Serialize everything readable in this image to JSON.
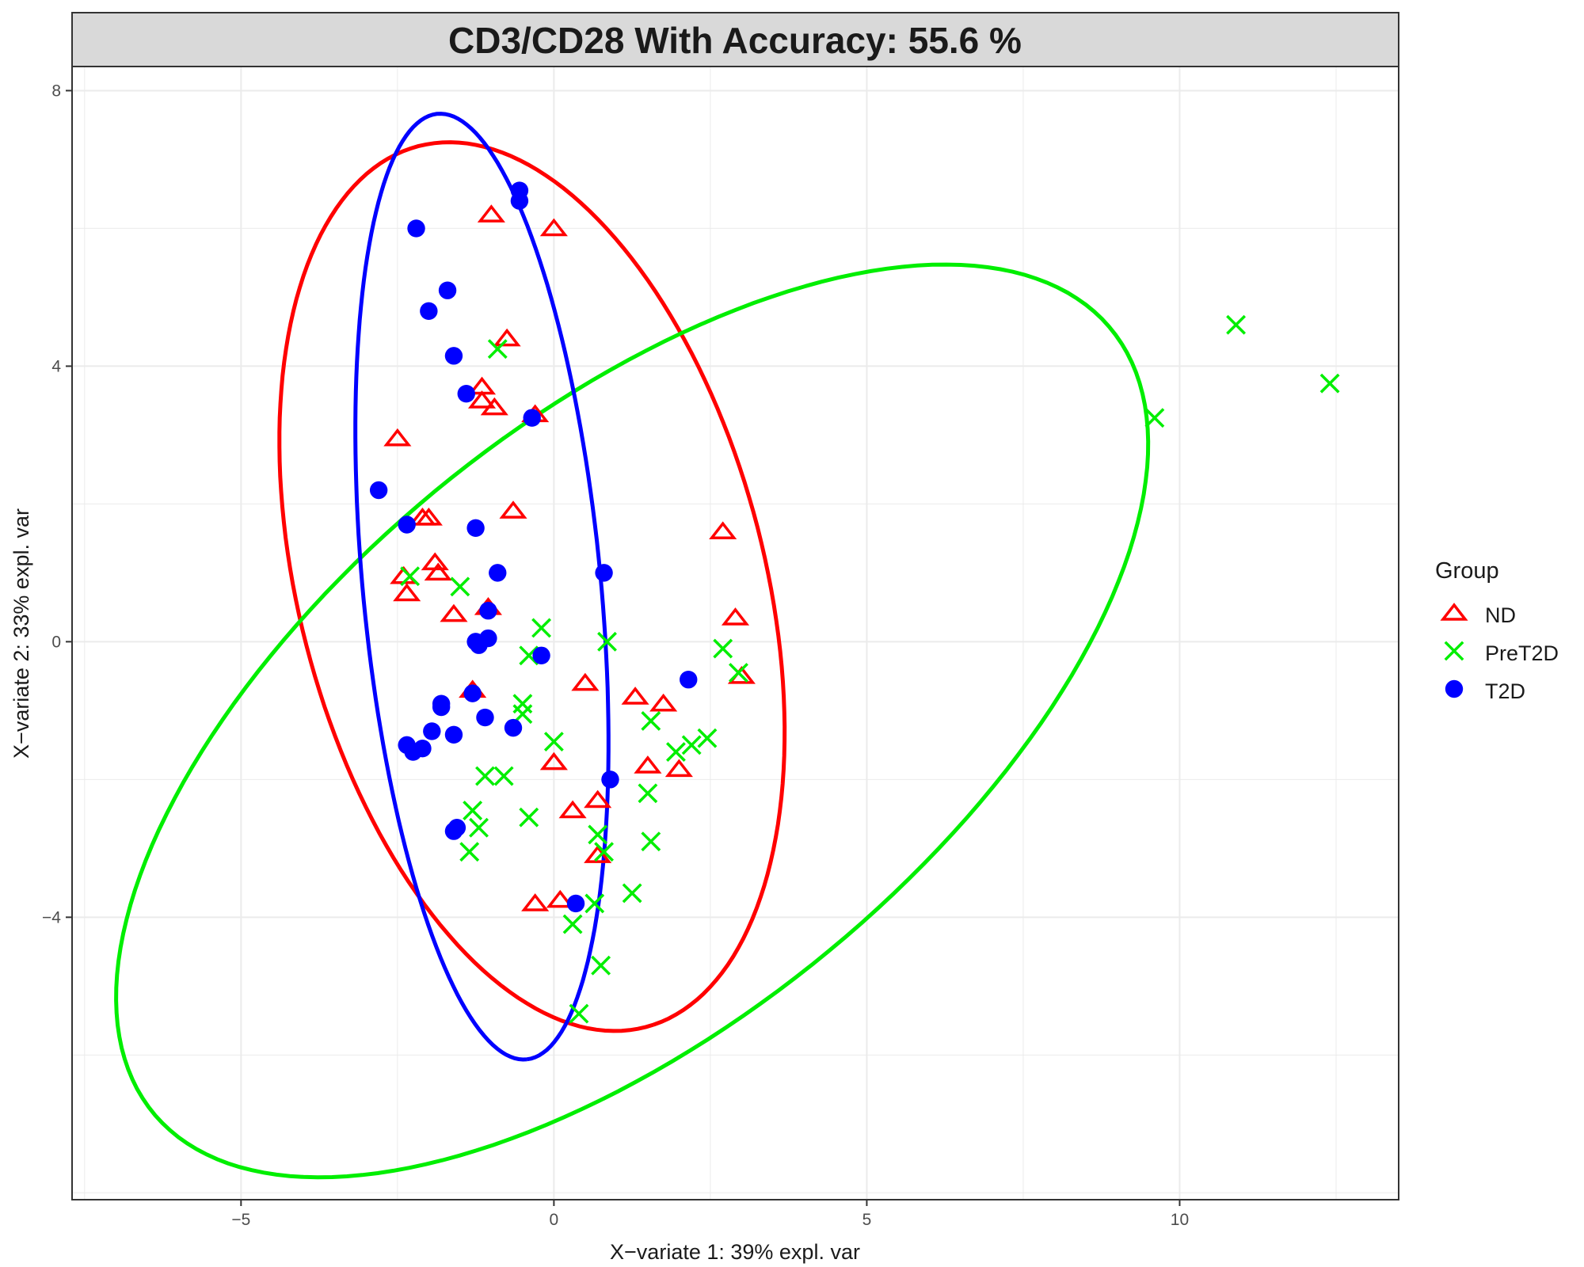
{
  "chart_data": {
    "type": "scatter",
    "title": "CD3/CD28 With Accuracy: 55.6 %",
    "xlabel": "X−variate 1: 39% expl. var",
    "ylabel": "X−variate 2: 33% expl. var",
    "xlim": [
      -7.7,
      13.5
    ],
    "ylim": [
      -8.1,
      8.35
    ],
    "x_ticks": [
      -5,
      0,
      5,
      10
    ],
    "x_tick_labels": [
      "−5",
      "0",
      "5",
      "10"
    ],
    "y_ticks": [
      -4,
      0,
      4,
      8
    ],
    "y_tick_labels": [
      "−4",
      "0",
      "4",
      "8"
    ],
    "grid": true,
    "legend": {
      "title": "Group",
      "position": "right",
      "entries": [
        {
          "label": "ND",
          "marker": "triangle",
          "color": "#ff0000"
        },
        {
          "label": "PreT2D",
          "marker": "x",
          "color": "#00ee00"
        },
        {
          "label": "T2D",
          "marker": "circle",
          "color": "#0000ff"
        }
      ]
    },
    "series": [
      {
        "name": "ND",
        "marker": "triangle",
        "color": "#ff0000",
        "points": [
          [
            -1.0,
            6.2
          ],
          [
            0.0,
            6.0
          ],
          [
            -0.75,
            4.4
          ],
          [
            -1.15,
            3.7
          ],
          [
            -1.15,
            3.5
          ],
          [
            -0.95,
            3.4
          ],
          [
            -0.3,
            3.3
          ],
          [
            -2.5,
            2.95
          ],
          [
            -0.65,
            1.9
          ],
          [
            -2.1,
            1.8
          ],
          [
            -2.0,
            1.8
          ],
          [
            -1.9,
            1.15
          ],
          [
            -1.85,
            1.0
          ],
          [
            -2.4,
            0.95
          ],
          [
            -2.35,
            0.7
          ],
          [
            -1.6,
            0.4
          ],
          [
            -1.05,
            0.5
          ],
          [
            2.7,
            1.6
          ],
          [
            2.9,
            0.35
          ],
          [
            3.0,
            -0.5
          ],
          [
            0.5,
            -0.6
          ],
          [
            1.3,
            -0.8
          ],
          [
            1.75,
            -0.9
          ],
          [
            -1.3,
            -0.7
          ],
          [
            0.0,
            -1.75
          ],
          [
            1.5,
            -1.8
          ],
          [
            2.0,
            -1.85
          ],
          [
            0.7,
            -2.3
          ],
          [
            0.3,
            -2.45
          ],
          [
            0.7,
            -3.1
          ],
          [
            -0.3,
            -3.8
          ],
          [
            0.1,
            -3.75
          ]
        ]
      },
      {
        "name": "PreT2D",
        "marker": "x",
        "color": "#00ee00",
        "points": [
          [
            10.9,
            4.6
          ],
          [
            12.4,
            3.75
          ],
          [
            9.6,
            3.25
          ],
          [
            -0.9,
            4.25
          ],
          [
            -2.3,
            0.95
          ],
          [
            -1.5,
            0.8
          ],
          [
            -0.2,
            0.2
          ],
          [
            0.85,
            0.0
          ],
          [
            -0.4,
            -0.2
          ],
          [
            2.7,
            -0.1
          ],
          [
            2.95,
            -0.45
          ],
          [
            -0.5,
            -0.9
          ],
          [
            -0.5,
            -1.05
          ],
          [
            1.55,
            -1.15
          ],
          [
            0.0,
            -1.45
          ],
          [
            2.2,
            -1.5
          ],
          [
            2.45,
            -1.4
          ],
          [
            1.95,
            -1.6
          ],
          [
            -1.1,
            -1.95
          ],
          [
            -0.8,
            -1.95
          ],
          [
            1.5,
            -2.2
          ],
          [
            -1.3,
            -2.45
          ],
          [
            -1.2,
            -2.7
          ],
          [
            -0.4,
            -2.55
          ],
          [
            0.7,
            -2.8
          ],
          [
            1.55,
            -2.9
          ],
          [
            -1.35,
            -3.05
          ],
          [
            0.8,
            -3.05
          ],
          [
            0.65,
            -3.8
          ],
          [
            1.25,
            -3.65
          ],
          [
            0.3,
            -4.1
          ],
          [
            0.75,
            -4.7
          ],
          [
            0.4,
            -5.4
          ]
        ]
      },
      {
        "name": "T2D",
        "marker": "circle",
        "color": "#0000ff",
        "points": [
          [
            -0.55,
            6.55
          ],
          [
            -0.55,
            6.4
          ],
          [
            -2.2,
            6.0
          ],
          [
            -1.7,
            5.1
          ],
          [
            -2.0,
            4.8
          ],
          [
            -1.6,
            4.15
          ],
          [
            -1.4,
            3.6
          ],
          [
            -0.35,
            3.25
          ],
          [
            -2.8,
            2.2
          ],
          [
            -2.35,
            1.7
          ],
          [
            -1.25,
            1.65
          ],
          [
            -0.9,
            1.0
          ],
          [
            0.8,
            1.0
          ],
          [
            -1.05,
            0.45
          ],
          [
            -1.25,
            0.0
          ],
          [
            -1.2,
            -0.05
          ],
          [
            -1.05,
            0.05
          ],
          [
            -0.2,
            -0.2
          ],
          [
            2.15,
            -0.55
          ],
          [
            -1.3,
            -0.75
          ],
          [
            -1.8,
            -0.9
          ],
          [
            -1.8,
            -0.95
          ],
          [
            -1.1,
            -1.1
          ],
          [
            -0.65,
            -1.25
          ],
          [
            -1.6,
            -1.35
          ],
          [
            -1.95,
            -1.3
          ],
          [
            -2.35,
            -1.5
          ],
          [
            -2.25,
            -1.6
          ],
          [
            -2.1,
            -1.55
          ],
          [
            0.9,
            -2.0
          ],
          [
            -1.55,
            -2.7
          ],
          [
            -1.6,
            -2.75
          ],
          [
            0.35,
            -3.8
          ]
        ]
      }
    ],
    "ellipses": [
      {
        "name": "ND",
        "color": "#ff0000",
        "center": [
          -0.35,
          0.8
        ],
        "semi_a": 6.65,
        "semi_b": 3.7,
        "angle_deg": -73
      },
      {
        "name": "PreT2D",
        "color": "#00ee00",
        "center": [
          1.25,
          -1.15
        ],
        "semi_a": 9.55,
        "semi_b": 4.55,
        "angle_deg": 35
      },
      {
        "name": "T2D",
        "color": "#0000ff",
        "center": [
          -1.15,
          0.8
        ],
        "semi_a": 6.9,
        "semi_b": 1.9,
        "angle_deg": -84
      }
    ]
  }
}
